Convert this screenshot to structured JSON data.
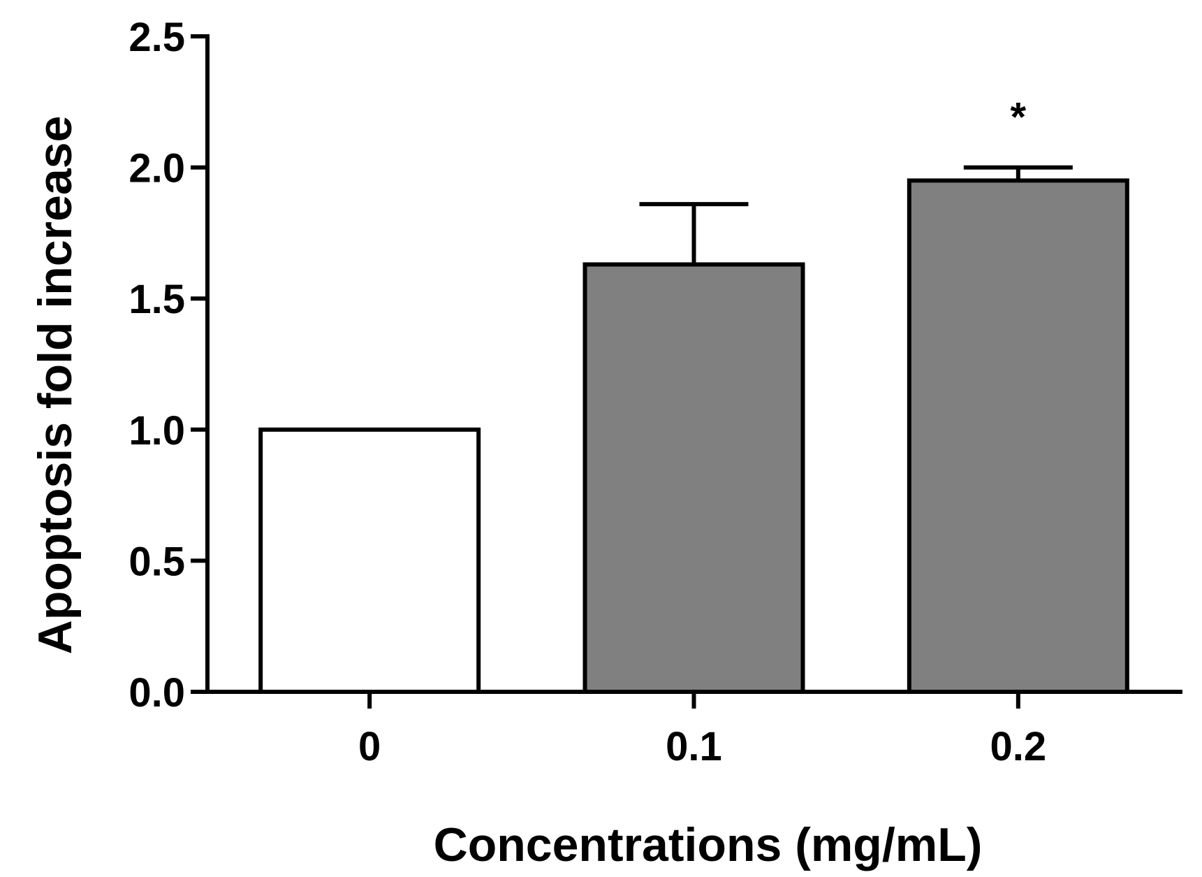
{
  "chart_data": {
    "type": "bar",
    "title": "",
    "xlabel": "Concentrations (mg/mL)",
    "ylabel": "Apoptosis fold increase",
    "categories": [
      "0",
      "0.1",
      "0.2"
    ],
    "values": [
      1.0,
      1.63,
      1.95
    ],
    "errors": [
      0,
      0.23,
      0.05
    ],
    "bar_colors": [
      "#ffffff",
      "#808080",
      "#808080"
    ],
    "annotations": [
      "",
      "",
      "*"
    ],
    "ylim": [
      0,
      2.5
    ],
    "yticks": [
      "0.0",
      "0.5",
      "1.0",
      "1.5",
      "2.0",
      "2.5"
    ],
    "grid": false,
    "legend": "none"
  }
}
